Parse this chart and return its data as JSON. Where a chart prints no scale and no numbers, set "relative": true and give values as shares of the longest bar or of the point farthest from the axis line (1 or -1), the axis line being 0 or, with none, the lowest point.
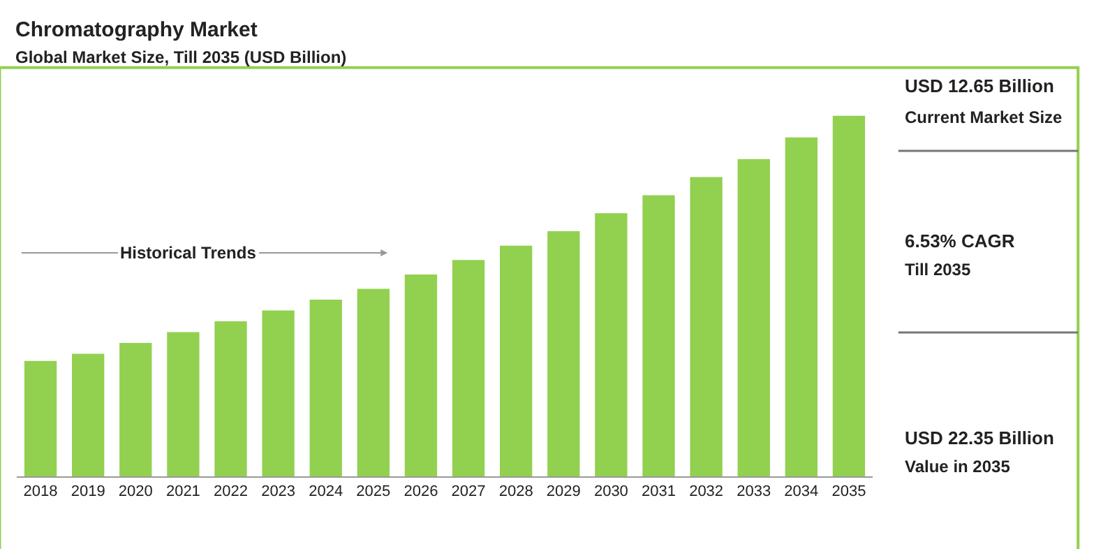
{
  "chart_data": {
    "type": "bar",
    "relative": true,
    "title": "Chromatography Market",
    "subtitle": "Global Market Size, Till 2035 (USD Billion)",
    "categories": [
      "2018",
      "2019",
      "2020",
      "2021",
      "2022",
      "2023",
      "2024",
      "2025",
      "2026",
      "2027",
      "2028",
      "2029",
      "2030",
      "2031",
      "2032",
      "2033",
      "2034",
      "2035"
    ],
    "values": [
      0.32,
      0.34,
      0.37,
      0.4,
      0.43,
      0.46,
      0.49,
      0.52,
      0.56,
      0.6,
      0.64,
      0.68,
      0.73,
      0.78,
      0.83,
      0.88,
      0.94,
      1
    ],
    "color": "#92d050",
    "grid": false,
    "legend": false,
    "annotations": [
      "Historical Trends",
      "USD 12.65 Billion",
      "Current Market Size",
      "6.53% CAGR",
      "Till 2035",
      "USD 22.35 Billion",
      "Value in 2035"
    ]
  }
}
